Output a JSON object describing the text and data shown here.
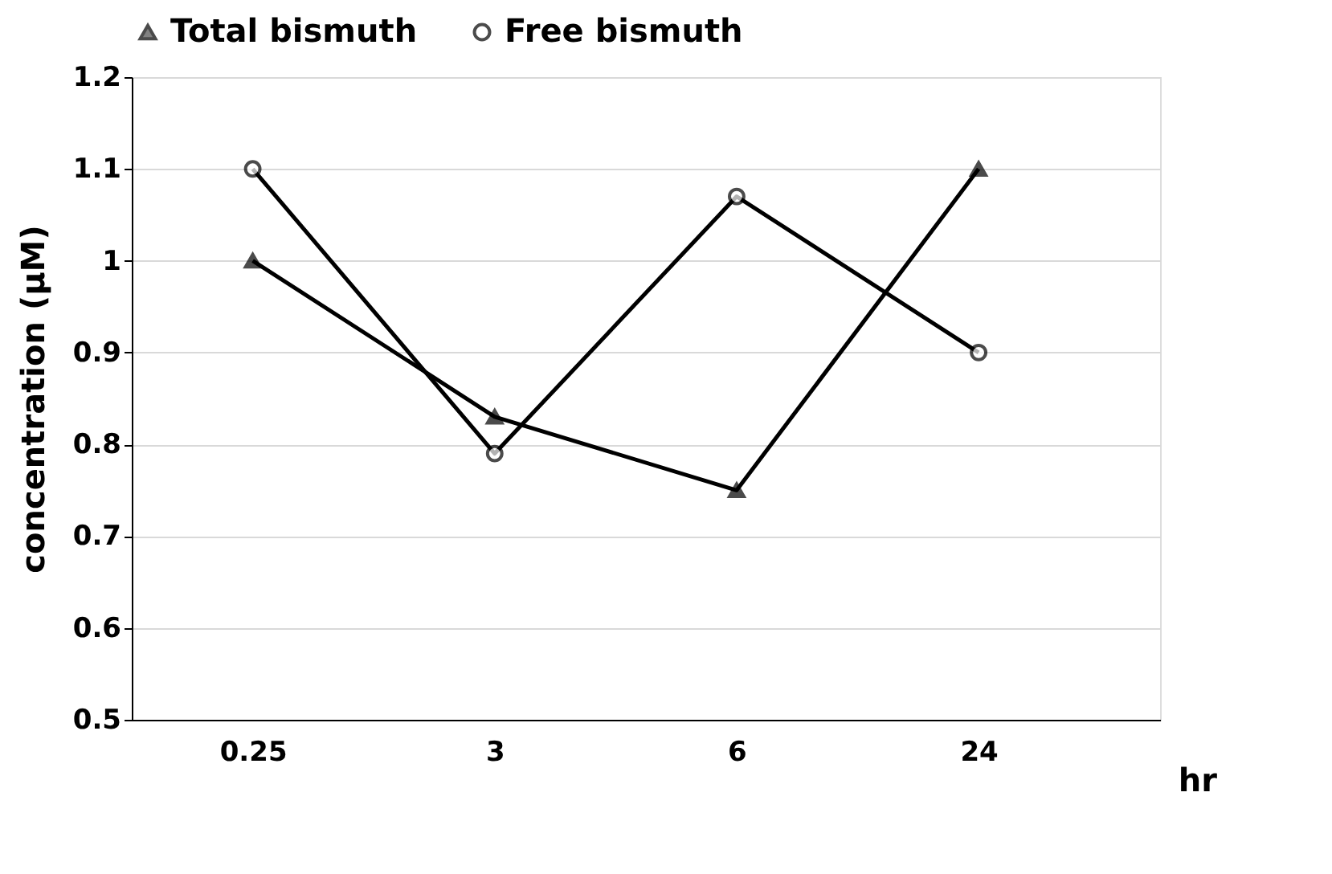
{
  "chart_data": {
    "type": "line",
    "xlabel": "hr",
    "ylabel": "concentration (μM)",
    "categories": [
      "0.25",
      "3",
      "6",
      "24"
    ],
    "series": [
      {
        "name": "Total bismuth",
        "color": "#000000",
        "marker": "triangle",
        "values": [
          1.0,
          0.83,
          0.75,
          1.1
        ]
      },
      {
        "name": "Free bismuth",
        "color": "#000000",
        "marker": "circle",
        "values": [
          1.1,
          0.79,
          1.07,
          0.9
        ]
      }
    ],
    "ylim": [
      0.5,
      1.2
    ],
    "yticks": [
      0.5,
      0.6,
      0.7,
      0.8,
      0.9,
      1,
      1.1,
      1.2
    ],
    "grid": "y",
    "legend": "top"
  }
}
